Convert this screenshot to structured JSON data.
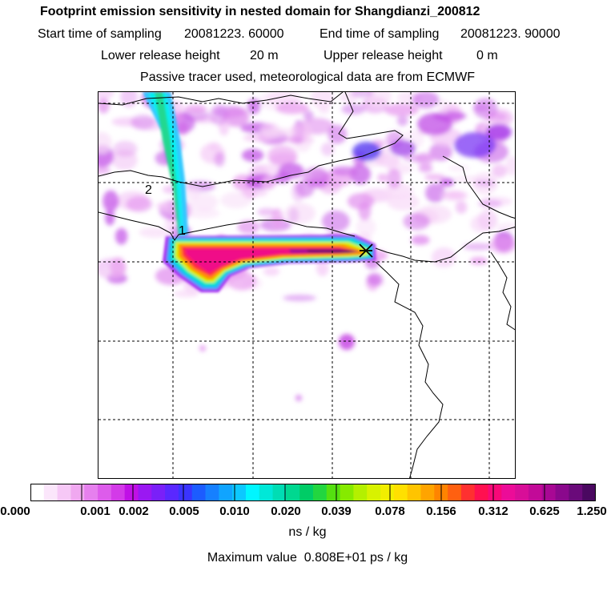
{
  "header": {
    "title": "Footprint emission sensitivity in nested domain for Shangdianzi_200812",
    "start_label": "Start time of sampling",
    "start_value": "20081223. 60000",
    "end_label": "End time of sampling",
    "end_value": "20081223. 90000",
    "lower_label": "Lower release height",
    "lower_value": "20 m",
    "upper_label": "Upper release height",
    "upper_value": "0 m",
    "note": "Passive tracer used, meteorological data are from ECMWF"
  },
  "map": {
    "markers": [
      {
        "label": "1"
      },
      {
        "label": "2"
      }
    ],
    "release_marker": "x-marker-icon",
    "colors": {
      "background": "#ffffff",
      "grid": "#000000",
      "coast": "#000000"
    }
  },
  "legend": {
    "ticks": [
      "0.000",
      "0.001",
      "0.002",
      "0.005",
      "0.010",
      "0.020",
      "0.039",
      "0.078",
      "0.156",
      "0.312",
      "0.625",
      "1.250"
    ],
    "unit": "ns / kg",
    "colors": [
      "#ffffff",
      "#fbe6fb",
      "#f6c8f6",
      "#f0a8f0",
      "#e680ee",
      "#dd5ceb",
      "#d33ae8",
      "#c010e6",
      "#9a18f2",
      "#7a20f8",
      "#5a28ff",
      "#3a34ff",
      "#1c5cff",
      "#1680ff",
      "#10a4ff",
      "#0cc8ff",
      "#00f6ff",
      "#00e8d8",
      "#00ddb4",
      "#00d890",
      "#00cc66",
      "#22d640",
      "#54e010",
      "#86ea00",
      "#b4f000",
      "#d8f200",
      "#f2ee00",
      "#ffe000",
      "#ffc400",
      "#ffa400",
      "#ff8400",
      "#ff6010",
      "#ff3030",
      "#ff1050",
      "#f80878",
      "#ec0c98",
      "#d80e98",
      "#c20a98",
      "#a80894",
      "#8a088c",
      "#6a0a7a",
      "#4a0860"
    ]
  },
  "footer": {
    "max_label": "Maximum value",
    "max_value": "0.808E+01 ps / kg"
  }
}
